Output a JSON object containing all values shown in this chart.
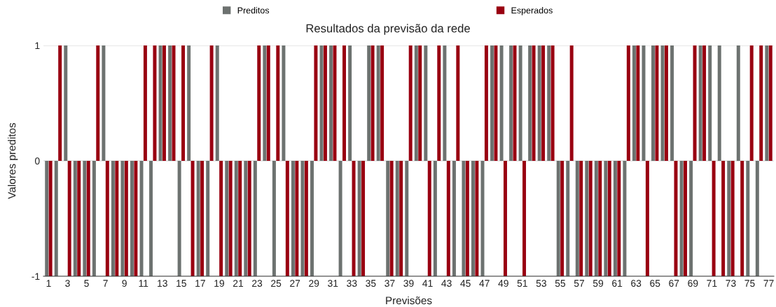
{
  "chart_data": {
    "type": "bar",
    "title": "Resultados da previsão da rede",
    "xlabel": "Previsões",
    "ylabel": "Valores preditos",
    "categories": [
      "1",
      null,
      "3",
      null,
      "5",
      null,
      "7",
      null,
      "9",
      null,
      "11",
      null,
      "13",
      null,
      "15",
      null,
      "17",
      null,
      "19",
      null,
      "21",
      null,
      "23",
      null,
      "25",
      null,
      "27",
      null,
      "29",
      null,
      "31",
      null,
      "33",
      null,
      "35",
      null,
      "37",
      null,
      "39",
      null,
      "41",
      null,
      "43",
      null,
      "45",
      null,
      "47",
      null,
      "49",
      null,
      "51",
      null,
      "53",
      null,
      "55",
      null,
      "57",
      null,
      "59",
      null,
      "61",
      null,
      "63",
      null,
      "65",
      null,
      "67",
      null,
      "69",
      null,
      "71",
      null,
      "73",
      null,
      "75",
      null,
      "77"
    ],
    "series": [
      {
        "name": "Preditos",
        "color": "#6d7270",
        "values": [
          -1,
          -1,
          1,
          -1,
          -1,
          -1,
          1,
          -1,
          -1,
          -1,
          -1,
          -1,
          1,
          1,
          -1,
          1,
          -1,
          -1,
          1,
          -1,
          -1,
          -1,
          -1,
          1,
          -1,
          1,
          -1,
          -1,
          -1,
          1,
          1,
          -1,
          1,
          -1,
          1,
          1,
          -1,
          -1,
          -1,
          1,
          1,
          -1,
          1,
          -1,
          -1,
          -1,
          -1,
          1,
          1,
          1,
          1,
          1,
          1,
          1,
          -1,
          -1,
          -1,
          -1,
          -1,
          -1,
          -1,
          -1,
          1,
          1,
          1,
          1,
          1,
          -1,
          -1,
          1,
          1,
          1,
          -1,
          1,
          -1,
          -1,
          1
        ]
      },
      {
        "name": "Esperados",
        "color": "#990011",
        "values": [
          -1,
          1,
          -1,
          -1,
          -1,
          1,
          -1,
          -1,
          -1,
          -1,
          1,
          1,
          1,
          1,
          1,
          -1,
          -1,
          1,
          -1,
          -1,
          -1,
          -1,
          1,
          1,
          1,
          -1,
          -1,
          -1,
          1,
          1,
          1,
          1,
          -1,
          -1,
          1,
          1,
          -1,
          -1,
          1,
          1,
          -1,
          1,
          -1,
          1,
          -1,
          -1,
          1,
          1,
          -1,
          1,
          -1,
          1,
          1,
          1,
          -1,
          1,
          -1,
          -1,
          -1,
          -1,
          -1,
          1,
          1,
          -1,
          1,
          1,
          -1,
          -1,
          1,
          1,
          -1,
          -1,
          -1,
          -1,
          1,
          1,
          1
        ]
      }
    ],
    "ylim": [
      -1,
      1
    ],
    "yticks": [
      -1,
      0,
      1
    ],
    "grid": "y",
    "legend": "top"
  }
}
